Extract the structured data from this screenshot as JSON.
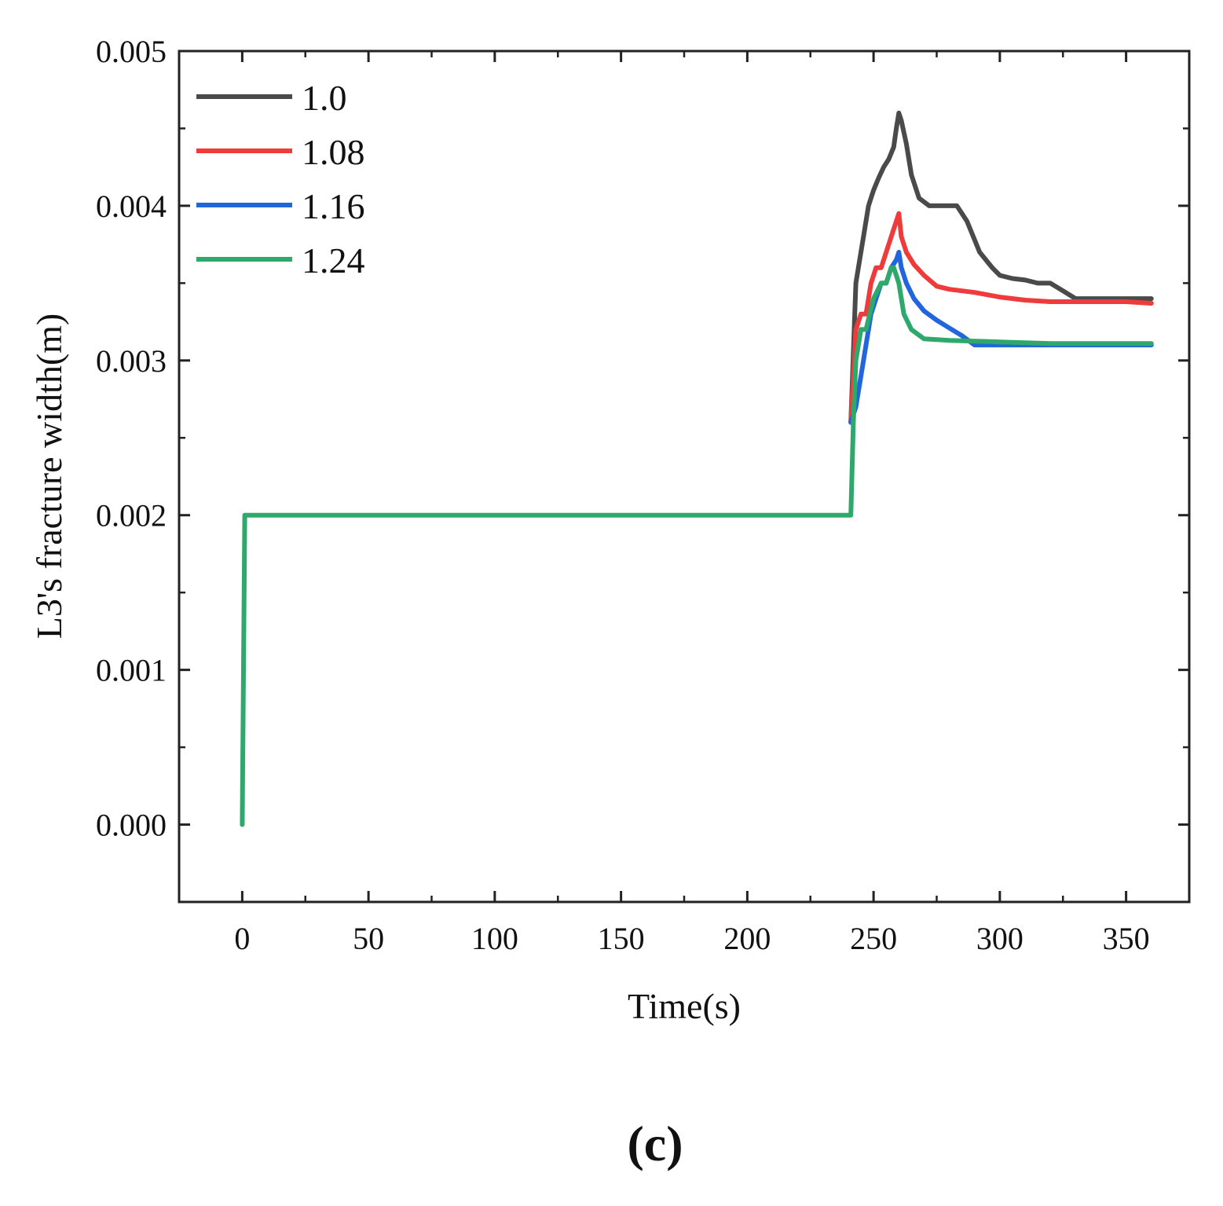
{
  "chart_data": {
    "type": "line",
    "xlabel": "Time(s)",
    "ylabel": "L3's fracture width(m)",
    "panel_label": "(c)",
    "xlim": [
      -25,
      375
    ],
    "ylim": [
      -0.0005,
      0.005
    ],
    "x_ticks": [
      0,
      50,
      100,
      150,
      200,
      250,
      300,
      350
    ],
    "x_tick_labels": [
      "0",
      "50",
      "100",
      "150",
      "200",
      "250",
      "300",
      "350"
    ],
    "y_ticks": [
      0.0,
      0.001,
      0.002,
      0.003,
      0.004,
      0.005
    ],
    "y_tick_labels": [
      "0.000",
      "0.001",
      "0.002",
      "0.003",
      "0.004",
      "0.005"
    ],
    "legend_position": "top-left",
    "series": [
      {
        "name": "1.0",
        "color": "#4a4a4a",
        "x": [
          241,
          243,
          244,
          246,
          248,
          250,
          252,
          254,
          256,
          258,
          259,
          260,
          261,
          263,
          265,
          268,
          272,
          278,
          283,
          287,
          292,
          297,
          300,
          305,
          310,
          315,
          320,
          325,
          330,
          340,
          350,
          360
        ],
        "y": [
          0.0026,
          0.0035,
          0.0036,
          0.0038,
          0.004,
          0.0041,
          0.00418,
          0.00425,
          0.0043,
          0.00438,
          0.0045,
          0.0046,
          0.00455,
          0.0044,
          0.0042,
          0.00405,
          0.004,
          0.004,
          0.004,
          0.0039,
          0.0037,
          0.0036,
          0.00355,
          0.00353,
          0.00352,
          0.0035,
          0.0035,
          0.00345,
          0.0034,
          0.0034,
          0.0034,
          0.0034
        ]
      },
      {
        "name": "1.08",
        "color": "#ee3b3b",
        "x": [
          241,
          243,
          245,
          247,
          249,
          251,
          253,
          255,
          257,
          259,
          260,
          261,
          263,
          266,
          270,
          275,
          280,
          290,
          300,
          310,
          320,
          330,
          340,
          350,
          360
        ],
        "y": [
          0.0026,
          0.0032,
          0.0033,
          0.0033,
          0.0035,
          0.0036,
          0.0036,
          0.0037,
          0.0038,
          0.0039,
          0.00395,
          0.0038,
          0.0037,
          0.00362,
          0.00355,
          0.00348,
          0.00346,
          0.00344,
          0.00341,
          0.00339,
          0.00338,
          0.00338,
          0.00338,
          0.00338,
          0.00337
        ]
      },
      {
        "name": "1.16",
        "color": "#2266dd",
        "x": [
          241,
          243,
          245,
          247,
          249,
          251,
          253,
          255,
          257,
          259,
          260,
          261,
          263,
          266,
          270,
          275,
          280,
          285,
          290,
          300,
          310,
          320,
          330,
          340,
          350,
          360
        ],
        "y": [
          0.0026,
          0.0027,
          0.0029,
          0.0031,
          0.0033,
          0.0034,
          0.0035,
          0.0035,
          0.0036,
          0.00365,
          0.0037,
          0.0036,
          0.0035,
          0.0034,
          0.00332,
          0.00326,
          0.00321,
          0.00316,
          0.0031,
          0.0031,
          0.0031,
          0.0031,
          0.0031,
          0.0031,
          0.0031,
          0.0031
        ]
      },
      {
        "name": "1.24",
        "color": "#2ea86b",
        "x": [
          0,
          0.5,
          1,
          2,
          100,
          200,
          240,
          241,
          242,
          243,
          245,
          247,
          250,
          253,
          255,
          257,
          258,
          259,
          260,
          262,
          265,
          270,
          280,
          300,
          320,
          340,
          360
        ],
        "y": [
          0.0,
          0.001,
          0.002,
          0.002,
          0.002,
          0.002,
          0.002,
          0.002,
          0.0026,
          0.003,
          0.0032,
          0.0032,
          0.0034,
          0.0035,
          0.0035,
          0.0036,
          0.0036,
          0.00355,
          0.0035,
          0.0033,
          0.0032,
          0.00314,
          0.00313,
          0.00312,
          0.00311,
          0.00311,
          0.00311
        ]
      }
    ]
  }
}
